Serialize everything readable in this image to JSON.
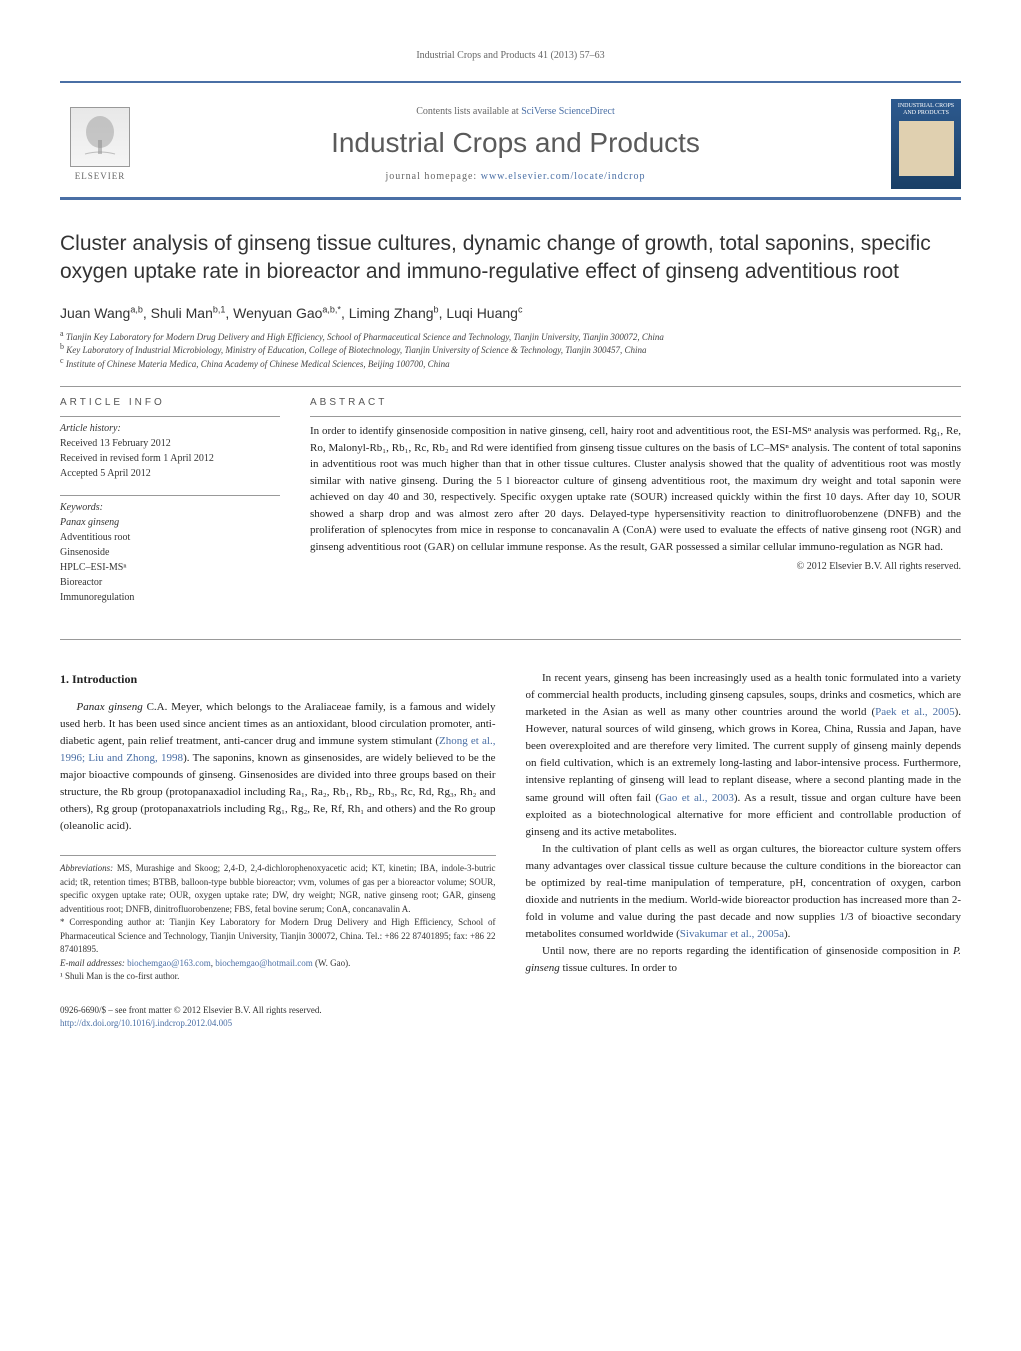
{
  "runningHeader": "Industrial Crops and Products 41 (2013) 57–63",
  "masthead": {
    "contentsLine_prefix": "Contents lists available at ",
    "contentsLine_link": "SciVerse ScienceDirect",
    "journalName": "Industrial Crops and Products",
    "homepage_prefix": "journal homepage: ",
    "homepage_link": "www.elsevier.com/locate/indcrop",
    "elsevierLabel": "ELSEVIER",
    "coverTitle": "INDUSTRIAL CROPS AND PRODUCTS"
  },
  "title": "Cluster analysis of ginseng tissue cultures, dynamic change of growth, total saponins, specific oxygen uptake rate in bioreactor and immuno-regulative effect of ginseng adventitious root",
  "authors_html": "Juan Wang<sup>a,b</sup>, Shuli Man<sup>b,1</sup>, Wenyuan Gao<sup>a,b,*</sup>, Liming Zhang<sup>b</sup>, Luqi Huang<sup>c</sup>",
  "affiliations": [
    {
      "sup": "a",
      "text": "Tianjin Key Laboratory for Modern Drug Delivery and High Efficiency, School of Pharmaceutical Science and Technology, Tianjin University, Tianjin 300072, China"
    },
    {
      "sup": "b",
      "text": "Key Laboratory of Industrial Microbiology, Ministry of Education, College of Biotechnology, Tianjin University of Science & Technology, Tianjin 300457, China"
    },
    {
      "sup": "c",
      "text": "Institute of Chinese Materia Medica, China Academy of Chinese Medical Sciences, Beijing 100700, China"
    }
  ],
  "articleInfo": {
    "heading": "ARTICLE INFO",
    "historyLabel": "Article history:",
    "history": [
      "Received 13 February 2012",
      "Received in revised form 1 April 2012",
      "Accepted 5 April 2012"
    ],
    "keywordsLabel": "Keywords:",
    "keywords": [
      "Panax ginseng",
      "Adventitious root",
      "Ginsenoside",
      "HPLC–ESI-MSⁿ",
      "Bioreactor",
      "Immunoregulation"
    ]
  },
  "abstract": {
    "heading": "ABSTRACT",
    "text": "In order to identify ginsenoside composition in native ginseng, cell, hairy root and adventitious root, the ESI-MSⁿ analysis was performed. Rg₁, Re, Ro, Malonyl-Rb₁, Rb₁, Rc, Rb₂ and Rd were identified from ginseng tissue cultures on the basis of LC–MSⁿ analysis. The content of total saponins in adventitious root was much higher than that in other tissue cultures. Cluster analysis showed that the quality of adventitious root was mostly similar with native ginseng. During the 5 l bioreactor culture of ginseng adventitious root, the maximum dry weight and total saponin were achieved on day 40 and 30, respectively. Specific oxygen uptake rate (SOUR) increased quickly within the first 10 days. After day 10, SOUR showed a sharp drop and was almost zero after 20 days. Delayed-type hypersensitivity reaction to dinitrofluorobenzene (DNFB) and the proliferation of splenocytes from mice in response to concanavalin A (ConA) were used to evaluate the effects of native ginseng root (NGR) and ginseng adventitious root (GAR) on cellular immune response. As the result, GAR possessed a similar cellular immuno-regulation as NGR had.",
    "copyright": "© 2012 Elsevier B.V. All rights reserved."
  },
  "body": {
    "introHeading": "1.  Introduction",
    "leftParas": [
      "<span class=\"species\">Panax ginseng</span> C.A. Meyer, which belongs to the Araliaceae family, is a famous and widely used herb. It has been used since ancient times as an antioxidant, blood circulation promoter, anti-diabetic agent, pain relief treatment, anti-cancer drug and immune system stimulant (<span class=\"cite\">Zhong et al., 1996; Liu and Zhong, 1998</span>). The saponins, known as ginsenosides, are widely believed to be the major bioactive compounds of ginseng. Ginsenosides are divided into three groups based on their structure, the Rb group (protopanaxadiol including Ra₁, Ra₂, Rb₁, Rb₂, Rb₃, Rc, Rd, Rg₃, Rh₂ and others), Rg group (protopanaxatriols including Rg₁, Rg₂, Re, Rf, Rh₁ and others) and the Ro group (oleanolic acid)."
    ],
    "rightParas": [
      "In recent years, ginseng has been increasingly used as a health tonic formulated into a variety of commercial health products, including ginseng capsules, soups, drinks and cosmetics, which are marketed in the Asian as well as many other countries around the world (<span class=\"cite\">Paek et al., 2005</span>). However, natural sources of wild ginseng, which grows in Korea, China, Russia and Japan, have been overexploited and are therefore very limited. The current supply of ginseng mainly depends on field cultivation, which is an extremely long-lasting and labor-intensive process. Furthermore, intensive replanting of ginseng will lead to replant disease, where a second planting made in the same ground will often fail (<span class=\"cite\">Gao et al., 2003</span>). As a result, tissue and organ culture have been exploited as a biotechnological alternative for more efficient and controllable production of ginseng and its active metabolites.",
      "In the cultivation of plant cells as well as organ cultures, the bioreactor culture system offers many advantages over classical tissue culture because the culture conditions in the bioreactor can be optimized by real-time manipulation of temperature, pH, concentration of oxygen, carbon dioxide and nutrients in the medium. World-wide bioreactor production has increased more than 2-fold in volume and value during the past decade and now supplies 1/3 of bioactive secondary metabolites consumed worldwide (<span class=\"cite\">Sivakumar et al., 2005a</span>).",
      "Until now, there are no reports regarding the identification of ginsenoside composition in <span class=\"species\">P. ginseng</span> tissue cultures. In order to"
    ]
  },
  "footnotes": {
    "abbrevLabel": "Abbreviations:",
    "abbrevText": "  MS, Murashige and Skoog; 2,4-D, 2,4-dichlorophenoxyacetic acid; KT, kinetin; IBA, indole-3-butric acid; tR, retention times; BTBB, balloon-type bubble bioreactor; vvm, volumes of gas per a bioreactor volume; SOUR, specific oxygen uptake rate; OUR, oxygen uptake rate; DW, dry weight; NGR, native ginseng root; GAR, ginseng adventitious root; DNFB, dinitrofluorobenzene; FBS, fetal bovine serum; ConA, concanavalin A.",
    "corrText": "* Corresponding author at: Tianjin Key Laboratory for Modern Drug Delivery and High Efficiency, School of Pharmaceutical Science and Technology, Tianjin University, Tianjin 300072, China. Tel.: +86 22 87401895; fax: +86 22 87401895.",
    "emailLabel": "E-mail addresses:",
    "email1": "biochemgao@163.com",
    "emailSep": ", ",
    "email2": "biochemgao@hotmail.com",
    "emailTail": " (W. Gao).",
    "cofirst": "¹ Shuli Man is the co-first author."
  },
  "footer": {
    "line1": "0926-6690/$ – see front matter © 2012 Elsevier B.V. All rights reserved.",
    "doi": "http://dx.doi.org/10.1016/j.indcrop.2012.04.005"
  },
  "colors": {
    "accent": "#4a6fa5",
    "text": "#222222",
    "muted": "#666666"
  }
}
